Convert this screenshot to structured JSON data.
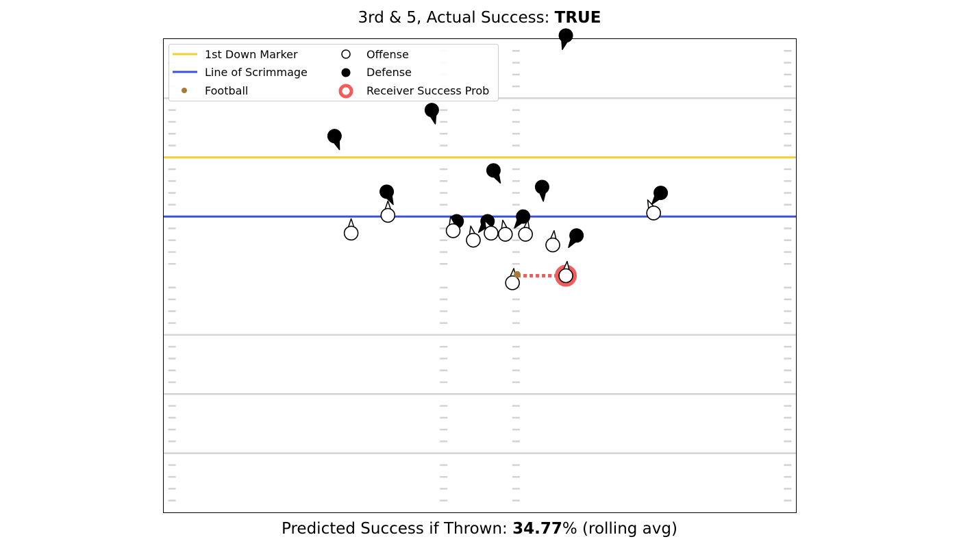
{
  "header": {
    "title_prefix": "3rd & 5, Actual Success: ",
    "title_value": "TRUE"
  },
  "footer": {
    "prefix": "Predicted Success if Thrown: ",
    "value": "34.77",
    "suffix": "% (rolling avg)"
  },
  "legend": {
    "first_down": "1st Down Marker",
    "scrimmage": "Line of Scrimmage",
    "football": "Football",
    "offense": "Offense",
    "defense": "Defense",
    "receiver": "Receiver Success Prob"
  },
  "colors": {
    "first_down": "#f0d030",
    "scrimmage": "#3b4fe0",
    "football": "#a87a35",
    "receiver": "#f25c5c",
    "yard_line": "#d3d3d3"
  },
  "chart_data": {
    "type": "scatter",
    "title": "3rd & 5, Actual Success: TRUE",
    "xlim": [
      0,
      53.3
    ],
    "ylim": [
      -25,
      15
    ],
    "yard_lines": [
      -20,
      -15,
      -10,
      5,
      10
    ],
    "hash_x": [
      0.7,
      23.6,
      29.7,
      52.6
    ],
    "hash_count_per_line": 4,
    "line_of_scrimmage_y": 0,
    "first_down_y": 5,
    "offense": [
      {
        "x": 15.8,
        "y": -1.4,
        "dx": 0.0,
        "dy": 1.2
      },
      {
        "x": 18.9,
        "y": 0.1,
        "dx": 0.0,
        "dy": 1.2
      },
      {
        "x": 24.4,
        "y": -1.2,
        "dx": -0.2,
        "dy": 1.1
      },
      {
        "x": 26.1,
        "y": -2.0,
        "dx": -0.2,
        "dy": 1.1
      },
      {
        "x": 27.6,
        "y": -1.4,
        "dx": -0.5,
        "dy": 1.0
      },
      {
        "x": 28.8,
        "y": -1.5,
        "dx": -0.2,
        "dy": 1.1
      },
      {
        "x": 30.5,
        "y": -1.5,
        "dx": 0.2,
        "dy": 1.2
      },
      {
        "x": 32.8,
        "y": -2.4,
        "dx": 0.1,
        "dy": 1.1
      },
      {
        "x": 41.3,
        "y": 0.3,
        "dx": -0.5,
        "dy": 1.1
      },
      {
        "x": 29.4,
        "y": -5.6,
        "dx": 0.1,
        "dy": 1.1
      },
      {
        "x": 33.9,
        "y": -5.0,
        "dx": 0.1,
        "dy": 1.1
      }
    ],
    "defense": [
      {
        "x": 33.9,
        "y": 15.3,
        "dx": -0.3,
        "dy": -1.2
      },
      {
        "x": 22.6,
        "y": 9.0,
        "dx": 0.3,
        "dy": -1.2
      },
      {
        "x": 14.4,
        "y": 6.8,
        "dx": 0.4,
        "dy": -1.1
      },
      {
        "x": 27.8,
        "y": 3.9,
        "dx": 0.6,
        "dy": -1.1
      },
      {
        "x": 18.8,
        "y": 2.1,
        "dx": 0.5,
        "dy": -1.0
      },
      {
        "x": 31.9,
        "y": 2.5,
        "dx": 0.1,
        "dy": -1.2
      },
      {
        "x": 41.9,
        "y": 2.0,
        "dx": -0.7,
        "dy": -0.9
      },
      {
        "x": 24.7,
        "y": -0.4,
        "dx": -0.4,
        "dy": -0.5
      },
      {
        "x": 27.3,
        "y": -0.4,
        "dx": -0.4,
        "dy": -0.5
      },
      {
        "x": 30.3,
        "y": 0.0,
        "dx": -0.6,
        "dy": -0.8
      },
      {
        "x": 34.8,
        "y": -1.6,
        "dx": -0.6,
        "dy": -0.9
      }
    ],
    "football": {
      "x": 29.8,
      "y": -4.9
    },
    "receiver": {
      "x": 33.9,
      "y": -5.0
    },
    "pass_line": {
      "from": {
        "x": 29.8,
        "y": -5.0
      },
      "to": {
        "x": 33.9,
        "y": -5.0
      }
    },
    "predicted_success_pct": 34.77,
    "legend_position": "upper-left",
    "grid": false
  }
}
